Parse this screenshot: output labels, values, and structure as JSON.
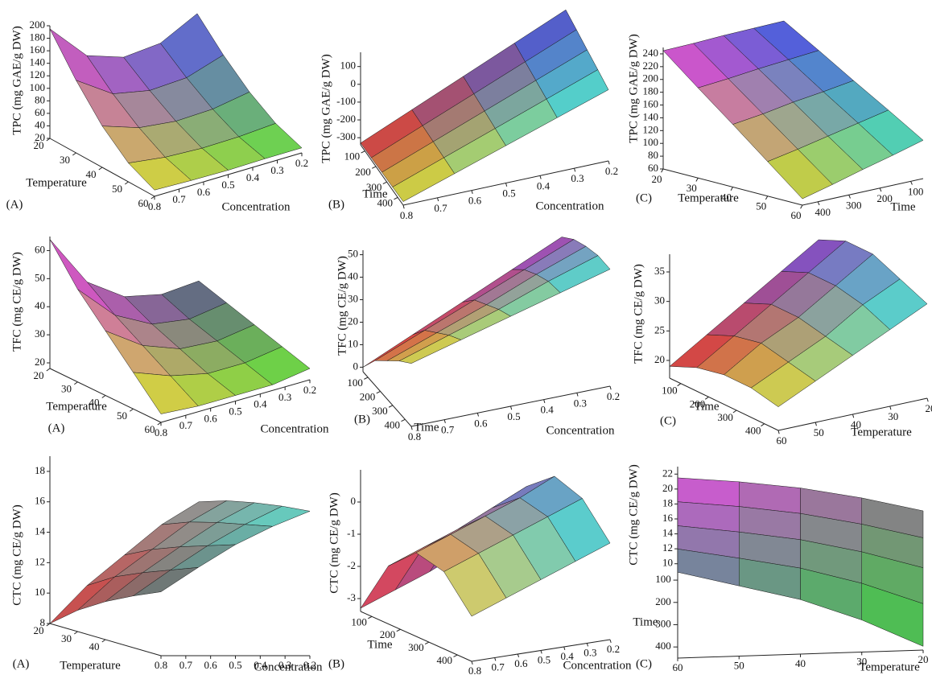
{
  "chart_data": [
    {
      "type": "surface",
      "label": "(A)",
      "z_label": "TPC (mg GAE/g DW)",
      "x_label": "Temperature",
      "y_label": "Concentration",
      "xlim": [
        20,
        60
      ],
      "ylim": [
        0.2,
        0.8
      ],
      "zlim": [
        20,
        200
      ],
      "xticks": [
        20,
        30,
        40,
        50,
        60
      ],
      "yticks": [
        0.2,
        0.3,
        0.4,
        0.5,
        0.6,
        0.7,
        0.8
      ],
      "zticks": [
        20,
        40,
        60,
        80,
        100,
        120,
        140,
        160,
        180,
        200
      ],
      "x": [
        20,
        30,
        40,
        50,
        60
      ],
      "y": [
        0.2,
        0.35,
        0.5,
        0.65,
        0.8
      ],
      "z": [
        [
          150,
          120,
          115,
          135,
          195
        ],
        [
          107,
          88,
          85,
          97,
          136
        ],
        [
          71,
          61,
          59,
          66,
          86
        ],
        [
          44,
          40,
          39,
          42,
          50
        ],
        [
          28,
          28,
          27,
          28,
          30
        ]
      ],
      "corner_colors": [
        "#5060e0",
        "#60e040",
        "#d048d0",
        "#e0e030"
      ]
    },
    {
      "type": "surface",
      "label": "(B)",
      "z_label": "TPC (mg GAE/g DW)",
      "x_label": "Time",
      "y_label": "Concentration",
      "xlim": [
        60,
        450
      ],
      "ylim": [
        0.2,
        0.8
      ],
      "zlim": [
        -340,
        180
      ],
      "xticks": [
        100,
        200,
        300,
        400
      ],
      "yticks": [
        0.2,
        0.3,
        0.4,
        0.5,
        0.6,
        0.7,
        0.8
      ],
      "zticks": [
        -300,
        -200,
        -100,
        0,
        100
      ],
      "x": [
        60,
        157.5,
        255,
        352.5,
        450
      ],
      "y": [
        0.2,
        0.35,
        0.5,
        0.65,
        0.8
      ],
      "z": [
        [
          170,
          45,
          -80,
          -205,
          -330
        ],
        [
          143,
          25,
          -93,
          -210,
          -328
        ],
        [
          115,
          5,
          -105,
          -215,
          -325
        ],
        [
          88,
          -15,
          -118,
          -220,
          -323
        ],
        [
          60,
          -35,
          -130,
          -225,
          -320
        ]
      ],
      "corner_colors": [
        "#4050e0",
        "#40e0e0",
        "#e03030",
        "#e0e030"
      ]
    },
    {
      "type": "surface",
      "label": "(C)",
      "z_label": "TPC (mg GAE/g DW)",
      "x_label": "Temperature",
      "y_label": "Time",
      "xlim": [
        20,
        60
      ],
      "ylim": [
        60,
        450
      ],
      "zlim": [
        60,
        250
      ],
      "xticks": [
        20,
        30,
        40,
        50,
        60
      ],
      "yticks": [
        100,
        200,
        300,
        400
      ],
      "zticks": [
        60,
        80,
        100,
        120,
        140,
        160,
        180,
        200,
        220,
        240
      ],
      "x": [
        20,
        30,
        40,
        50,
        60
      ],
      "y": [
        60,
        157.5,
        255,
        352.5,
        450
      ],
      "z": [
        [
          250,
          249,
          248,
          246,
          245
        ],
        [
          218,
          214,
          210,
          205,
          201
        ],
        [
          185,
          178,
          172,
          164,
          158
        ],
        [
          153,
          143,
          133,
          123,
          114
        ],
        [
          120,
          107,
          95,
          82,
          70
        ]
      ],
      "corner_colors": [
        "#4050e0",
        "#40e0c0",
        "#e040e0",
        "#d0e020"
      ]
    },
    {
      "type": "surface",
      "label": "(A)",
      "z_label": "TFC (mg CE/g DW)",
      "x_label": "Temperature",
      "y_label": "Concentration",
      "xlim": [
        20,
        60
      ],
      "ylim": [
        0.2,
        0.8
      ],
      "zlim": [
        18,
        65
      ],
      "xticks": [
        20,
        30,
        40,
        50,
        60
      ],
      "yticks": [
        0.2,
        0.3,
        0.4,
        0.5,
        0.6,
        0.7,
        0.8
      ],
      "zticks": [
        20,
        30,
        40,
        50,
        60
      ],
      "x": [
        20,
        30,
        40,
        50,
        60
      ],
      "y": [
        0.2,
        0.35,
        0.5,
        0.65,
        0.8
      ],
      "z": [
        [
          34,
          33,
          36,
          45,
          64
        ],
        [
          31,
          29,
          31,
          38,
          51
        ],
        [
          28,
          26,
          27,
          32,
          41
        ],
        [
          25,
          23,
          23,
          26,
          31
        ],
        [
          22,
          20,
          20,
          20,
          21
        ]
      ],
      "corner_colors": [
        "#506080",
        "#60e040",
        "#e040e0",
        "#e0e030"
      ]
    },
    {
      "type": "surface",
      "label": "(B)",
      "z_label": "TFC (mg CE/g DW)",
      "x_label": "Time",
      "y_label": "Concentration",
      "xlim": [
        60,
        450
      ],
      "ylim": [
        0.2,
        0.8
      ],
      "zlim": [
        -2,
        52
      ],
      "xticks": [
        100,
        200,
        300,
        400
      ],
      "yticks": [
        0.2,
        0.3,
        0.4,
        0.5,
        0.6,
        0.7,
        0.8
      ],
      "zticks": [
        0,
        10,
        20,
        30,
        40,
        50
      ],
      "x": [
        60,
        157.5,
        255,
        352.5,
        450
      ],
      "y": [
        0.2,
        0.35,
        0.5,
        0.65,
        0.8
      ],
      "z": [
        [
          40,
          30,
          20,
          10,
          0
        ],
        [
          45,
          36,
          27,
          18,
          9
        ],
        [
          48,
          40,
          31,
          23,
          15
        ],
        [
          50,
          43,
          35,
          28,
          21
        ],
        [
          50,
          44,
          38,
          32,
          26
        ]
      ],
      "corner_colors": [
        "#a040c0",
        "#40e0e0",
        "#e03030",
        "#e0e040"
      ]
    },
    {
      "type": "surface",
      "label": "(C)",
      "z_label": "TFC (mg CE/g DW)",
      "x_label": "Time",
      "y_label": "Temperature",
      "xlim": [
        60,
        450
      ],
      "ylim": [
        20,
        60
      ],
      "zlim": [
        17,
        38
      ],
      "xticks": [
        100,
        200,
        300,
        400
      ],
      "yticks": [
        20,
        30,
        40,
        50,
        60
      ],
      "zticks": [
        20,
        25,
        30,
        35
      ],
      "x": [
        60,
        157.5,
        255,
        352.5,
        450
      ],
      "y": [
        20,
        30,
        40,
        50,
        60
      ],
      "z": [
        [
          35,
          31,
          27,
          23,
          19
        ],
        [
          37,
          33,
          29,
          25,
          21
        ],
        [
          37,
          33,
          29,
          26,
          22
        ],
        [
          35,
          32,
          28,
          25,
          22
        ],
        [
          33,
          30,
          27,
          24,
          21
        ]
      ],
      "corner_colors": [
        "#8040d0",
        "#40e0e0",
        "#e03030",
        "#e0e040"
      ]
    },
    {
      "type": "surface",
      "label": "(A)",
      "z_label": "CTC (mg CE/g DW)",
      "x_label": "Temperature",
      "y_label": "Concentration",
      "xlim": [
        20,
        60
      ],
      "ylim": [
        0.2,
        0.8
      ],
      "zlim": [
        8,
        19
      ],
      "xticks": [
        20,
        30,
        40
      ],
      "yticks": [
        0.2,
        0.3,
        0.4,
        0.5,
        0.6,
        0.7,
        0.8
      ],
      "zticks": [
        8,
        10,
        12,
        14,
        16,
        18
      ],
      "x": [
        20,
        30,
        40,
        50,
        60
      ],
      "y": [
        0.2,
        0.35,
        0.5,
        0.65,
        0.8
      ],
      "z": [
        [
          16,
          14.5,
          12.5,
          10.5,
          8
        ],
        [
          16.6,
          15.2,
          13.4,
          11.6,
          9.4
        ],
        [
          17,
          15.7,
          14.1,
          12.4,
          10.5
        ],
        [
          17.3,
          16.1,
          14.7,
          13.1,
          11.4
        ],
        [
          17.5,
          16.5,
          15.3,
          13.8,
          12.2
        ]
      ],
      "corner_colors": [
        "#909090",
        "#60e0d0",
        "#e04040",
        "#607070"
      ]
    },
    {
      "type": "surface",
      "label": "(B)",
      "z_label": "CTC (mg CE/g DW)",
      "x_label": "Time",
      "y_label": "Concentration",
      "xlim": [
        60,
        450
      ],
      "ylim": [
        0.2,
        0.8
      ],
      "zlim": [
        -3.4,
        1
      ],
      "xticks": [
        100,
        200,
        300,
        400
      ],
      "yticks": [
        0.2,
        0.3,
        0.4,
        0.5,
        0.6,
        0.7,
        0.8
      ],
      "zticks": [
        -3,
        -2,
        -1,
        0
      ],
      "x": [
        60,
        157.5,
        255,
        352.5,
        450
      ],
      "y": [
        0.2,
        0.35,
        0.5,
        0.65,
        0.8
      ],
      "z": [
        [
          -1.5,
          -2,
          -2.5,
          -2.9,
          -3.3
        ],
        [
          0.2,
          -0.3,
          -0.8,
          -1.2,
          -1.6
        ],
        [
          0.9,
          0.4,
          0,
          -0.4,
          -0.8
        ],
        [
          0.6,
          0.2,
          -0.2,
          -0.6,
          -1
        ],
        [
          -0.4,
          -0.8,
          -1.2,
          -1.6,
          -2
        ]
      ],
      "corner_colors": [
        "#8040c0",
        "#40e0e0",
        "#e03050",
        "#e0e060"
      ]
    },
    {
      "type": "surface",
      "label": "(C)",
      "z_label": "CTC (mg CE/g DW)",
      "x_label": "Time",
      "y_label": "Temperature",
      "xlim": [
        60,
        450
      ],
      "ylim": [
        20,
        60
      ],
      "zlim": [
        9,
        23
      ],
      "xticks": [
        100,
        200,
        300,
        400
      ],
      "yticks": [
        20,
        30,
        40,
        50,
        60
      ],
      "zticks": [
        10,
        12,
        14,
        16,
        18,
        20,
        22
      ],
      "x": [
        60,
        157.5,
        255,
        352.5,
        450
      ],
      "y": [
        20,
        30,
        40,
        50,
        60
      ],
      "z": [
        [
          16,
          18,
          19.6,
          20.7,
          21.5
        ],
        [
          15.3,
          17.4,
          19.1,
          20.3,
          21.2
        ],
        [
          14.2,
          16.6,
          18.5,
          19.8,
          20.9
        ],
        [
          12.3,
          15.3,
          17.6,
          19.2,
          20.7
        ],
        [
          9.5,
          13.3,
          16.3,
          18.4,
          20.5
        ]
      ],
      "corner_colors": [
        "#808080",
        "#40d040",
        "#e050e0",
        "#7080a0"
      ]
    }
  ]
}
